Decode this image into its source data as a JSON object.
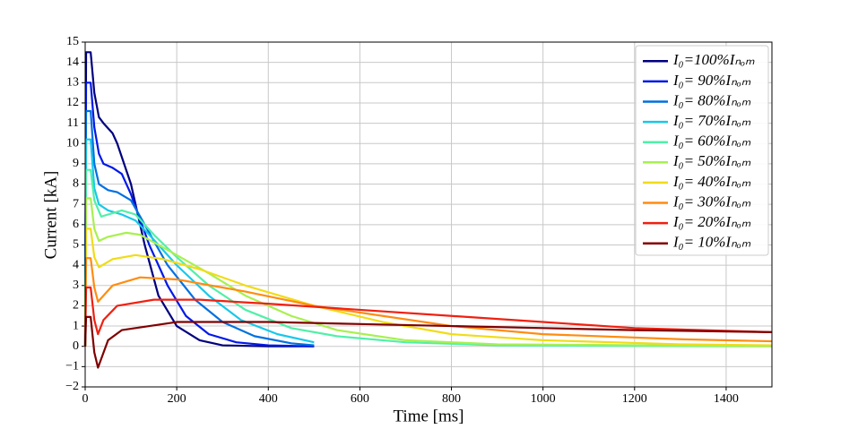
{
  "chart_data": {
    "type": "line",
    "x_label": "Time [ms]",
    "y_label": "Current [kA]",
    "xlim": [
      0,
      1500
    ],
    "ylim": [
      -2,
      15
    ],
    "xticks": [
      0,
      200,
      400,
      600,
      800,
      1000,
      1200,
      1400
    ],
    "yticks": [
      {
        "value": -2,
        "label": "−2"
      },
      {
        "value": -1,
        "label": "−1"
      },
      0,
      1,
      2,
      3,
      4,
      5,
      6,
      7,
      8,
      9,
      10,
      11,
      12,
      13,
      14,
      15
    ],
    "grid": true,
    "legend": "upper-right",
    "series": [
      {
        "name": "I₀=100%Iₙₒₘ",
        "color": "#00007f",
        "x": [
          0,
          2,
          12,
          20,
          30,
          40,
          60,
          70,
          100,
          130,
          160,
          200,
          250,
          300,
          400,
          500
        ],
        "values": [
          0,
          14.5,
          14.5,
          12.5,
          11.3,
          11,
          10.5,
          10,
          8,
          5,
          2.5,
          1,
          0.3,
          0.05,
          0,
          0
        ]
      },
      {
        "name": "I₀= 90%Iₙₒₘ",
        "color": "#0018e8",
        "x": [
          0,
          2,
          12,
          20,
          30,
          40,
          60,
          80,
          100,
          140,
          180,
          220,
          270,
          330,
          400,
          500
        ],
        "values": [
          0,
          13,
          13,
          10.8,
          9.5,
          9,
          8.8,
          8.5,
          7.5,
          5,
          3,
          1.5,
          0.6,
          0.2,
          0.05,
          0
        ]
      },
      {
        "name": "I₀= 80%Iₙₒₘ",
        "color": "#0070e0",
        "x": [
          0,
          2,
          12,
          20,
          30,
          50,
          70,
          100,
          130,
          180,
          240,
          300,
          370,
          450,
          500
        ],
        "values": [
          0,
          11.6,
          11.6,
          9,
          8,
          7.7,
          7.6,
          7.2,
          6,
          4,
          2.3,
          1.2,
          0.5,
          0.15,
          0.05
        ]
      },
      {
        "name": "I₀= 70%Iₙₒₘ",
        "color": "#18c8ea",
        "x": [
          0,
          2,
          12,
          20,
          30,
          50,
          80,
          110,
          140,
          200,
          270,
          340,
          420,
          500
        ],
        "values": [
          0,
          10.2,
          10.2,
          7.8,
          7,
          6.7,
          6.5,
          6.2,
          5.5,
          4,
          2.5,
          1.3,
          0.6,
          0.2
        ]
      },
      {
        "name": "I₀= 60%Iₙₒₘ",
        "color": "#50f0a8",
        "x": [
          0,
          2,
          12,
          20,
          35,
          50,
          80,
          110,
          150,
          200,
          270,
          350,
          450,
          550,
          700,
          900,
          1500
        ],
        "values": [
          0,
          8.7,
          8.7,
          7.2,
          6.4,
          6.5,
          6.7,
          6.5,
          5.5,
          4.4,
          3,
          1.8,
          0.9,
          0.5,
          0.2,
          0.05,
          0
        ]
      },
      {
        "name": "I₀= 50%Iₙₒₘ",
        "color": "#a8f050",
        "x": [
          0,
          2,
          12,
          20,
          30,
          50,
          90,
          120,
          160,
          200,
          270,
          350,
          450,
          550,
          700,
          900,
          1500
        ],
        "values": [
          0,
          7.3,
          7.3,
          5.8,
          5.2,
          5.4,
          5.6,
          5.5,
          5,
          4.5,
          3.6,
          2.5,
          1.5,
          0.8,
          0.3,
          0.1,
          0.02
        ]
      },
      {
        "name": "I₀= 40%Iₙₒₘ",
        "color": "#f0dc18",
        "x": [
          0,
          2,
          12,
          20,
          30,
          60,
          110,
          170,
          250,
          350,
          500,
          650,
          800,
          1000,
          1300,
          1500
        ],
        "values": [
          0,
          5.8,
          5.8,
          4.4,
          3.9,
          4.3,
          4.5,
          4.3,
          3.8,
          3,
          2,
          1.2,
          0.6,
          0.3,
          0.1,
          0.05
        ]
      },
      {
        "name": "I₀= 30%Iₙₒₘ",
        "color": "#ff8c10",
        "x": [
          0,
          2,
          12,
          20,
          28,
          60,
          120,
          200,
          350,
          500,
          650,
          800,
          1000,
          1300,
          1500
        ],
        "values": [
          0,
          4.35,
          4.35,
          2.9,
          2.2,
          3,
          3.4,
          3.3,
          2.7,
          2,
          1.5,
          1,
          0.6,
          0.35,
          0.25
        ]
      },
      {
        "name": "I₀= 20%Iₙₒₘ",
        "color": "#f02010",
        "x": [
          0,
          2,
          12,
          20,
          28,
          40,
          70,
          150,
          250,
          400,
          600,
          800,
          1000,
          1200,
          1500
        ],
        "values": [
          0,
          2.9,
          2.9,
          1.3,
          0.6,
          1.3,
          2,
          2.3,
          2.3,
          2.1,
          1.8,
          1.5,
          1.2,
          0.9,
          0.7
        ]
      },
      {
        "name": "I₀= 10%Iₙₒₘ",
        "color": "#7f0000",
        "x": [
          0,
          2,
          12,
          20,
          28,
          50,
          80,
          200,
          400,
          600,
          800,
          1000,
          1200,
          1500
        ],
        "values": [
          0,
          1.45,
          1.45,
          -0.3,
          -1.05,
          0.3,
          0.8,
          1.2,
          1.2,
          1.1,
          1,
          0.9,
          0.8,
          0.7
        ]
      }
    ]
  }
}
